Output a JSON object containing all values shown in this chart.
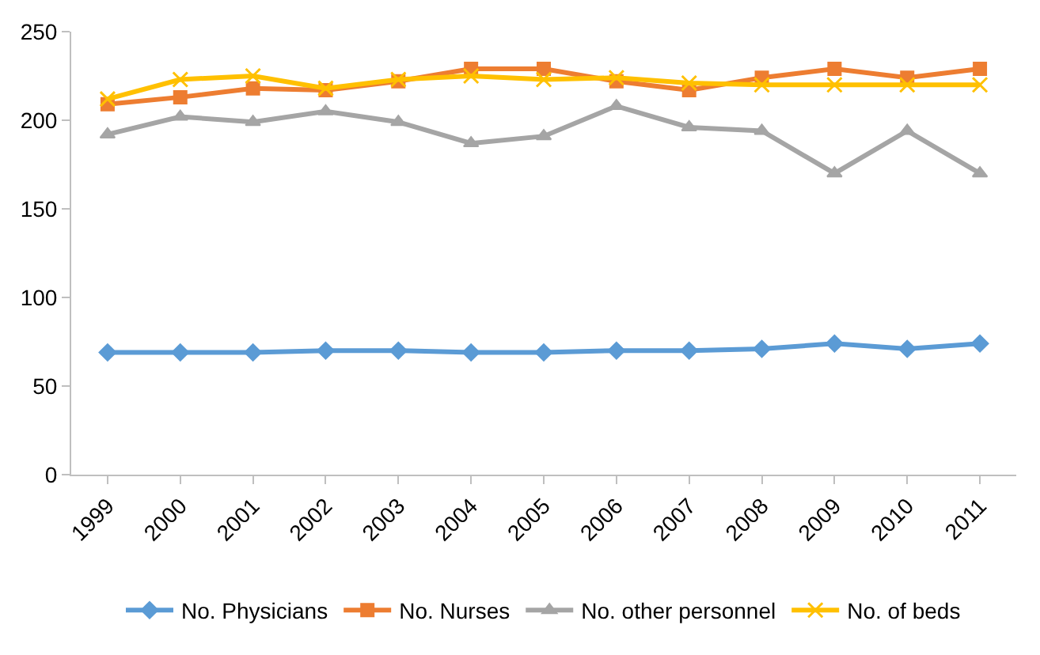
{
  "chart_data": {
    "type": "line",
    "categories": [
      "1999",
      "2000",
      "2001",
      "2002",
      "2003",
      "2004",
      "2005",
      "2006",
      "2007",
      "2008",
      "2009",
      "2010",
      "2011"
    ],
    "ylim": [
      0,
      250
    ],
    "yticks": [
      0,
      50,
      100,
      150,
      200,
      250
    ],
    "grid": false,
    "legend": "bottom",
    "series": [
      {
        "name": "No. Physicians",
        "color": "#5b9bd5",
        "marker": "diamond",
        "values": [
          69,
          69,
          69,
          70,
          70,
          69,
          69,
          70,
          70,
          71,
          74,
          71,
          74
        ]
      },
      {
        "name": "No. Nurses",
        "color": "#ed7d31",
        "marker": "square",
        "values": [
          209,
          213,
          218,
          217,
          222,
          229,
          229,
          222,
          217,
          224,
          229,
          224,
          229
        ]
      },
      {
        "name": "No. other personnel",
        "color": "#a5a5a5",
        "marker": "triangle",
        "values": [
          192,
          202,
          199,
          205,
          199,
          187,
          191,
          208,
          196,
          194,
          170,
          194,
          170
        ]
      },
      {
        "name": "No. of beds",
        "color": "#ffc000",
        "marker": "cross",
        "values": [
          212,
          223,
          225,
          218,
          223,
          225,
          223,
          224,
          221,
          220,
          220,
          220,
          220
        ]
      }
    ]
  }
}
